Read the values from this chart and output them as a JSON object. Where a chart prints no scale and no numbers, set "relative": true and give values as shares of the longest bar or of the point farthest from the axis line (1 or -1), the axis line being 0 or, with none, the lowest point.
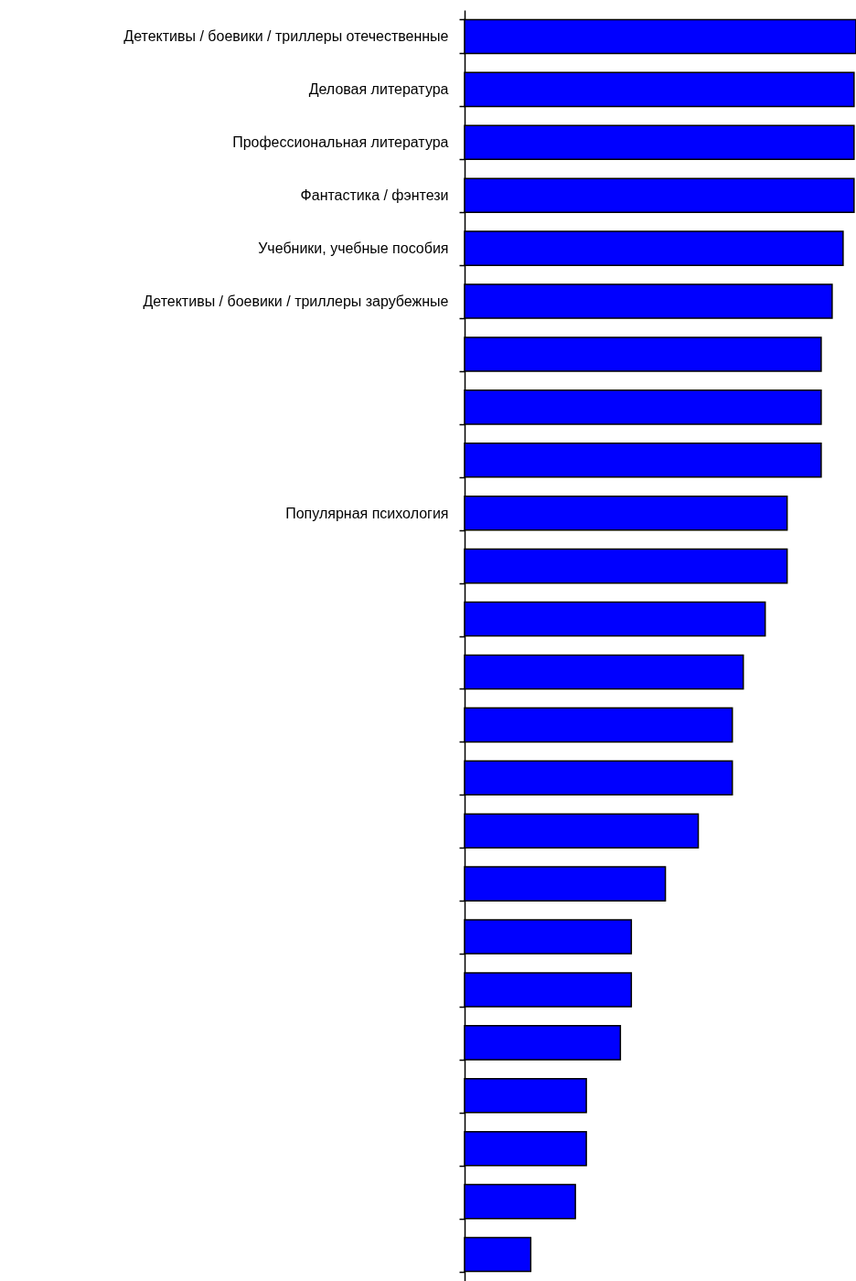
{
  "chart_data": {
    "type": "bar",
    "orientation": "horizontal",
    "relative": true,
    "color": "#0000ff",
    "categories": [
      "Детективы / боевики / триллеры отечественные",
      "Деловая литература ",
      "Профессиональная литература",
      "Фантастика / фэнтези",
      "Учебники, учебные пособия",
      "Детективы / боевики / триллеры зарубежные ",
      null,
      null,
      null,
      "Популярная психология",
      null,
      null,
      null,
      null,
      null,
      null,
      null,
      null,
      null,
      null,
      null,
      null,
      null,
      null
    ],
    "values": [
      1,
      0.995,
      0.995,
      0.995,
      0.967,
      0.939,
      0.911,
      0.911,
      0.911,
      0.824,
      0.824,
      0.768,
      0.712,
      0.684,
      0.684,
      0.597,
      0.513,
      0.426,
      0.426,
      0.398,
      0.311,
      0.311,
      0.283,
      0.169
    ]
  }
}
